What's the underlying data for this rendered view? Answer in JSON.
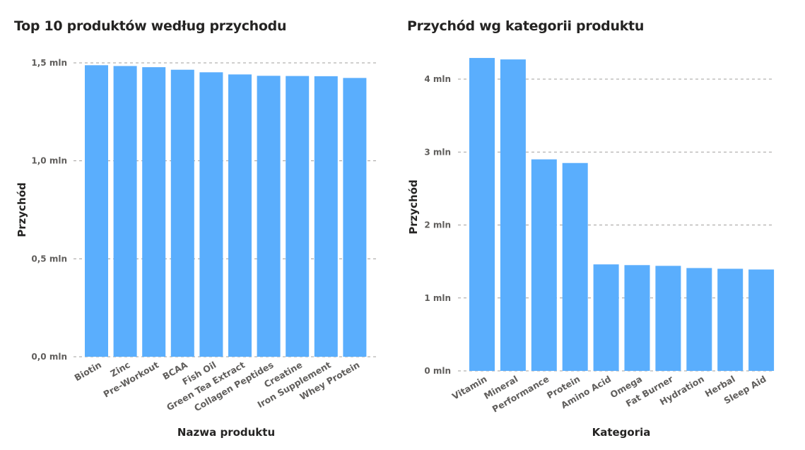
{
  "colors": {
    "bar": "#5aaefd",
    "grid": "#a19f9d",
    "tick": "#605e5c",
    "title": "#252423"
  },
  "chart_data": [
    {
      "type": "bar",
      "title": "Top 10 produktów według przychodu",
      "xlabel": "Nazwa produktu",
      "ylabel": "Przychód",
      "ylim": [
        0,
        1500000
      ],
      "yticks": [
        0,
        500000,
        1000000,
        1500000
      ],
      "ytick_labels": [
        "0,0 mln",
        "0,5 mln",
        "1,0 mln",
        "1,5 mln"
      ],
      "categories": [
        "Biotin",
        "Zinc",
        "Pre-Workout",
        "BCAA",
        "Fish Oil",
        "Green Tea Extract",
        "Collagen Peptides",
        "Creatine",
        "Iron Supplement",
        "Whey Protein"
      ],
      "values": [
        1488000,
        1484000,
        1478000,
        1465000,
        1452000,
        1441000,
        1434000,
        1433000,
        1432000,
        1423000
      ],
      "grid": true,
      "legend": "none"
    },
    {
      "type": "bar",
      "title": "Przychód wg kategorii produktu",
      "xlabel": "Kategoria",
      "ylabel": "Przychód",
      "ylim": [
        0,
        4000000
      ],
      "yticks": [
        0,
        1000000,
        2000000,
        3000000,
        4000000
      ],
      "ytick_labels": [
        "0 mln",
        "1 mln",
        "2 mln",
        "3 mln",
        "4 mln"
      ],
      "categories": [
        "Vitamin",
        "Mineral",
        "Performance",
        "Protein",
        "Amino Acid",
        "Omega",
        "Fat Burner",
        "Hydration",
        "Herbal",
        "Sleep Aid"
      ],
      "values": [
        4290000,
        4270000,
        2900000,
        2850000,
        1460000,
        1450000,
        1440000,
        1410000,
        1400000,
        1390000
      ],
      "grid": true,
      "legend": "none"
    }
  ]
}
